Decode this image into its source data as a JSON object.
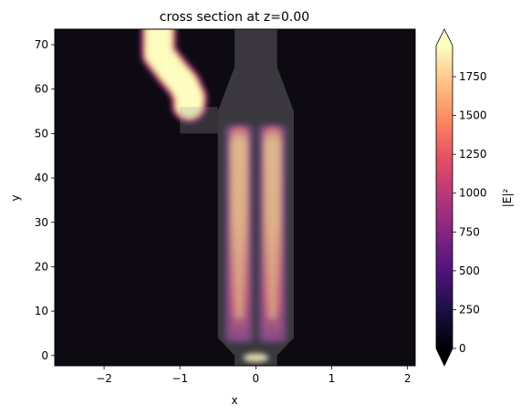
{
  "chart_data": {
    "type": "heatmap",
    "title": "cross section at z=0.00",
    "xlabel": "x",
    "ylabel": "y",
    "xlim": [
      -2.65,
      2.1
    ],
    "ylim": [
      -2.3,
      73.5
    ],
    "x_ticks": [
      -2,
      -1,
      0,
      1,
      2
    ],
    "x_tick_labels": [
      "−2",
      "−1",
      "0",
      "1",
      "2"
    ],
    "y_ticks": [
      0,
      10,
      20,
      30,
      40,
      50,
      60,
      70
    ],
    "y_tick_labels": [
      "0",
      "10",
      "20",
      "30",
      "40",
      "50",
      "60",
      "70"
    ],
    "colorbar": {
      "label": "|E|²",
      "colormap": "magma",
      "vmin": 0,
      "vmax": 1950,
      "extend": "both",
      "ticks": [
        0,
        250,
        500,
        750,
        1000,
        1250,
        1500,
        1750
      ],
      "tick_labels": [
        "0",
        "250",
        "500",
        "750",
        "1000",
        "1250",
        "1500",
        "1750"
      ]
    },
    "structure_overlay": {
      "taper_outline": [
        [
          -0.28,
          -2.3
        ],
        [
          -0.28,
          0
        ],
        [
          -0.5,
          4
        ],
        [
          -0.5,
          55
        ],
        [
          -0.28,
          65
        ],
        [
          -0.28,
          73.5
        ],
        [
          0.28,
          73.5
        ],
        [
          0.28,
          65
        ],
        [
          0.5,
          55
        ],
        [
          0.5,
          4
        ],
        [
          0.28,
          0
        ],
        [
          0.28,
          -2.3
        ]
      ],
      "bend_block": [
        [
          -1.0,
          50
        ],
        [
          -0.5,
          50
        ],
        [
          -0.5,
          56
        ],
        [
          -1.0,
          56
        ]
      ]
    },
    "field_features": [
      {
        "kind": "path",
        "points": [
          [
            -1.28,
            73.5
          ],
          [
            -1.28,
            68
          ],
          [
            -1.1,
            64
          ],
          [
            -0.95,
            61
          ],
          [
            -0.87,
            58
          ],
          [
            -0.88,
            56.5
          ]
        ],
        "width": 0.33,
        "value": 1950
      },
      {
        "kind": "lobe",
        "x": -0.22,
        "y_start": 3,
        "y_end": 52,
        "y_peak": 25,
        "width": 0.23,
        "value": 1650
      },
      {
        "kind": "lobe",
        "x": 0.22,
        "y_start": 3,
        "y_end": 52,
        "y_peak": 25,
        "width": 0.23,
        "value": 1650
      },
      {
        "kind": "spot",
        "x": 0.0,
        "y": -0.5,
        "value": 1900
      }
    ]
  }
}
